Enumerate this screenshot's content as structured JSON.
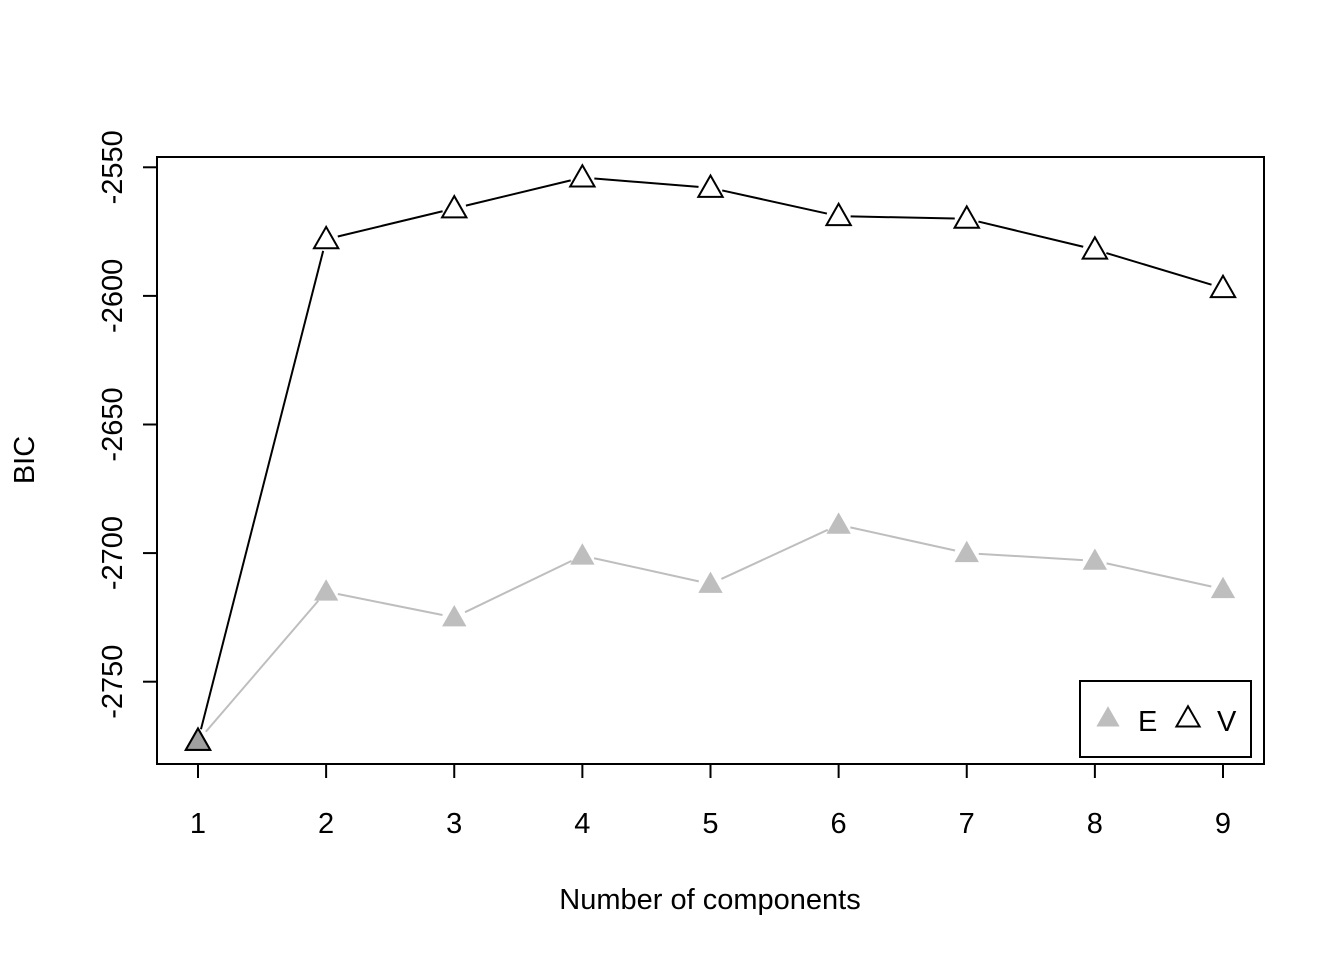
{
  "chart_data": {
    "type": "line",
    "xlabel": "Number of components",
    "ylabel": "BIC",
    "x": [
      1,
      2,
      3,
      4,
      5,
      6,
      7,
      8,
      9
    ],
    "xlim": [
      0.68,
      9.32
    ],
    "ylim": [
      -2782,
      -2546
    ],
    "yticks": [
      -2750,
      -2700,
      -2650,
      -2600,
      -2550
    ],
    "ytick_labels": [
      "-2750",
      "-2700",
      "-2650",
      "-2600",
      "-2550"
    ],
    "xtick_labels": [
      "1",
      "2",
      "3",
      "4",
      "5",
      "6",
      "7",
      "8",
      "9"
    ],
    "series": [
      {
        "name": "E",
        "marker": "filled-triangle",
        "color": "#bebebe",
        "values": [
          -2773,
          -2715,
          -2725,
          -2701,
          -2712,
          -2689,
          -2700,
          -2703,
          -2714
        ]
      },
      {
        "name": "V",
        "marker": "open-triangle",
        "color": "#000000",
        "values": [
          -2773,
          -2578,
          -2566,
          -2554,
          -2558,
          -2569,
          -2570,
          -2582,
          -2597
        ]
      }
    ],
    "legend_position": "bottom-right",
    "grid": false
  }
}
